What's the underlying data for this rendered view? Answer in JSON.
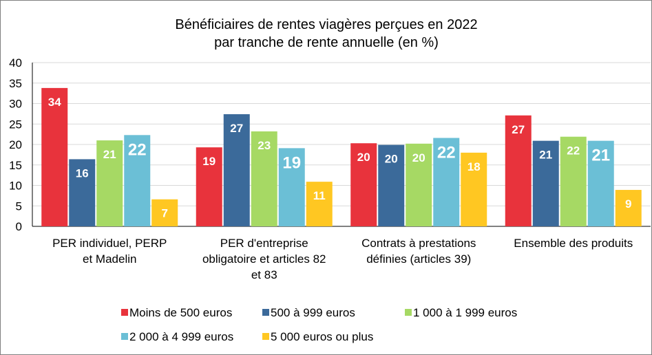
{
  "chart_data": {
    "type": "bar",
    "title": [
      "Bénéficiaires de rentes viagères perçues en 2022",
      "par tranche de rente annuelle (en %)"
    ],
    "categories": [
      [
        "PER individuel, PERP",
        "et Madelin"
      ],
      [
        "PER d'entreprise",
        "obligatoire et articles 82",
        "et 83"
      ],
      [
        "Contrats à prestations",
        "définies (articles 39)"
      ],
      [
        "Ensemble des produits"
      ]
    ],
    "series": [
      {
        "name": "Moins de 500 euros",
        "color": "#e8333c",
        "values": [
          33.8,
          19.3,
          20.3,
          27.1
        ],
        "labels": [
          "34",
          "19",
          "20",
          "27"
        ]
      },
      {
        "name": "500 à 999 euros",
        "color": "#3b6a9a",
        "values": [
          16.4,
          27.4,
          19.9,
          20.9
        ],
        "labels": [
          "16",
          "27",
          "20",
          "21"
        ]
      },
      {
        "name": "1 000 à 1 999 euros",
        "color": "#a6d964",
        "values": [
          21.0,
          23.2,
          20.2,
          21.9
        ],
        "labels": [
          "21",
          "23",
          "20",
          "22"
        ]
      },
      {
        "name": "2 000 à 4 999 euros",
        "color": "#6bbfd6",
        "values": [
          22.3,
          19.1,
          21.6,
          20.9
        ],
        "labels": [
          "22",
          "19",
          "22",
          "21"
        ]
      },
      {
        "name": "5 000 euros ou plus",
        "color": "#ffc722",
        "values": [
          6.6,
          10.9,
          18.0,
          8.9
        ],
        "labels": [
          "7",
          "11",
          "18",
          "9"
        ]
      }
    ],
    "ylim": [
      0,
      40
    ],
    "yticks": [
      "0",
      "5",
      "10",
      "15",
      "20",
      "25",
      "30",
      "35",
      "40"
    ],
    "grid": "horizontal",
    "legend": "bottom"
  }
}
